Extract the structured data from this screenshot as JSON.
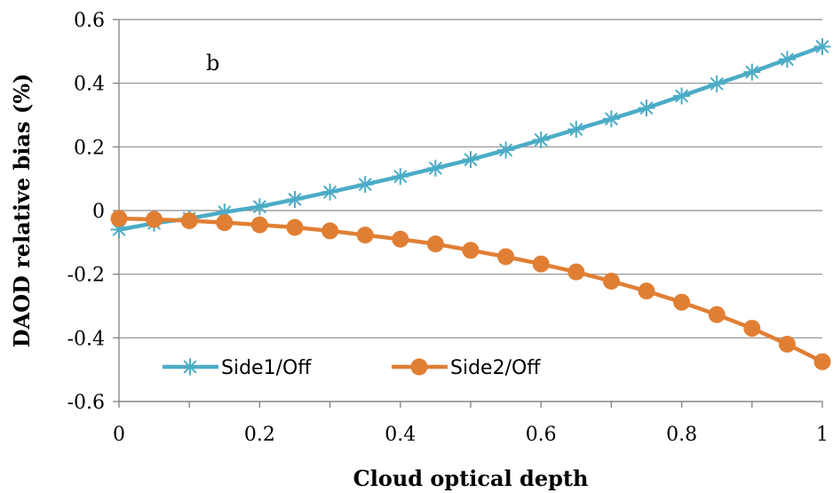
{
  "chart_data": {
    "type": "line",
    "panel_label": "b",
    "xlabel": "Cloud optical depth",
    "ylabel": "DAOD relative bias (%)",
    "xlim": [
      0,
      1
    ],
    "ylim": [
      -0.6,
      0.6
    ],
    "x_ticks": [
      "0",
      "0.2",
      "0.4",
      "0.6",
      "0.8",
      "1"
    ],
    "y_ticks": [
      "0.6",
      "0.4",
      "0.2",
      "0",
      "-0.2",
      "-0.4",
      "-0.6"
    ],
    "grid": "horizontal",
    "legend_position": "bottom-left",
    "x": [
      0,
      0.05,
      0.1,
      0.15,
      0.2,
      0.25,
      0.3,
      0.35,
      0.4,
      0.45,
      0.5,
      0.55,
      0.6,
      0.65,
      0.7,
      0.75,
      0.8,
      0.85,
      0.9,
      0.95,
      1.0
    ],
    "series": [
      {
        "name": "Side1/Off",
        "color": "#4bacc6",
        "marker": "asterisk",
        "values": [
          -0.06,
          -0.04,
          -0.025,
          -0.005,
          0.012,
          0.035,
          0.058,
          0.082,
          0.107,
          0.133,
          0.16,
          0.19,
          0.222,
          0.255,
          0.288,
          0.322,
          0.36,
          0.398,
          0.435,
          0.475,
          0.515
        ]
      },
      {
        "name": "Side2/Off",
        "color": "#e07f34",
        "marker": "circle",
        "values": [
          -0.025,
          -0.028,
          -0.032,
          -0.038,
          -0.045,
          -0.053,
          -0.064,
          -0.077,
          -0.09,
          -0.105,
          -0.125,
          -0.145,
          -0.168,
          -0.193,
          -0.222,
          -0.253,
          -0.288,
          -0.327,
          -0.37,
          -0.42,
          -0.475
        ]
      }
    ]
  }
}
